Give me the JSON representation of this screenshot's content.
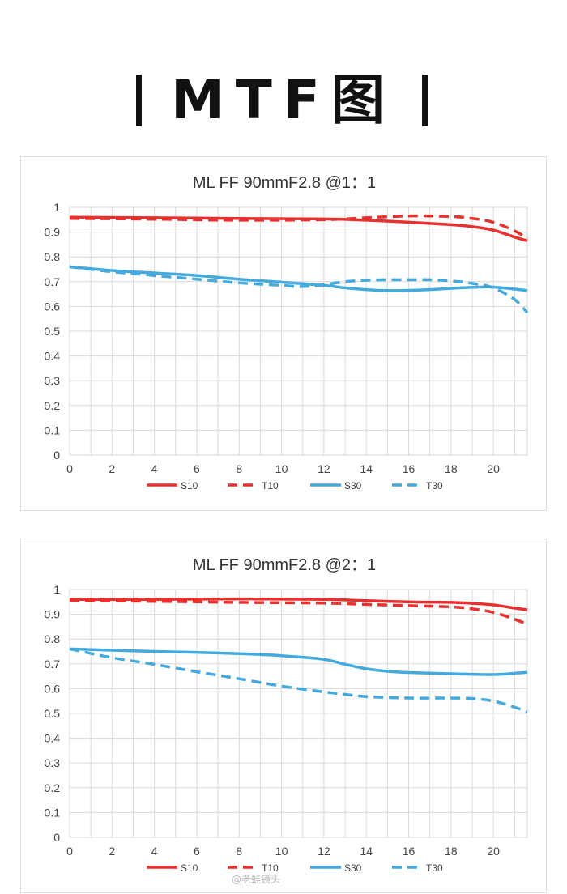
{
  "header": {
    "title": "MTF图"
  },
  "watermark": "@老蛙镜头",
  "legend_names": [
    "S10",
    "T10",
    "S30",
    "T30"
  ],
  "colors": {
    "red": "#e8302e",
    "blue": "#44aadd",
    "grid": "#d9d9d9",
    "axis_text": "#444444",
    "title_text": "#333333"
  },
  "chart_data": [
    {
      "type": "line",
      "title": "ML FF 90mmF2.8 @1：1",
      "xlim": [
        0,
        21.6
      ],
      "ylim": [
        0,
        1
      ],
      "x_ticks": [
        "0",
        "2",
        "4",
        "6",
        "8",
        "10",
        "12",
        "14",
        "16",
        "18",
        "20"
      ],
      "y_ticks": [
        "0",
        "0.1",
        "0.2",
        "0.3",
        "0.4",
        "0.5",
        "0.6",
        "0.7",
        "0.8",
        "0.9",
        "1"
      ],
      "grid": true,
      "legend_position": "bottom",
      "series": [
        {
          "name": "S10",
          "color": "red",
          "dashed": false,
          "points": [
            [
              0,
              0.96
            ],
            [
              4,
              0.958
            ],
            [
              8,
              0.955
            ],
            [
              12,
              0.953
            ],
            [
              14,
              0.948
            ],
            [
              16,
              0.94
            ],
            [
              18,
              0.93
            ],
            [
              19,
              0.922
            ],
            [
              20,
              0.908
            ],
            [
              21,
              0.88
            ],
            [
              21.6,
              0.865
            ]
          ]
        },
        {
          "name": "T10",
          "color": "red",
          "dashed": true,
          "points": [
            [
              0,
              0.955
            ],
            [
              4,
              0.952
            ],
            [
              8,
              0.948
            ],
            [
              12,
              0.95
            ],
            [
              14,
              0.958
            ],
            [
              16,
              0.965
            ],
            [
              18,
              0.963
            ],
            [
              19,
              0.955
            ],
            [
              20,
              0.94
            ],
            [
              21,
              0.905
            ],
            [
              21.6,
              0.875
            ]
          ]
        },
        {
          "name": "S30",
          "color": "blue",
          "dashed": false,
          "points": [
            [
              0,
              0.76
            ],
            [
              2,
              0.745
            ],
            [
              4,
              0.735
            ],
            [
              6,
              0.725
            ],
            [
              8,
              0.71
            ],
            [
              10,
              0.698
            ],
            [
              12,
              0.685
            ],
            [
              13,
              0.675
            ],
            [
              14,
              0.668
            ],
            [
              15,
              0.664
            ],
            [
              16,
              0.665
            ],
            [
              17,
              0.668
            ],
            [
              18,
              0.673
            ],
            [
              19,
              0.677
            ],
            [
              20,
              0.678
            ],
            [
              21,
              0.67
            ],
            [
              21.6,
              0.664
            ]
          ]
        },
        {
          "name": "T30",
          "color": "blue",
          "dashed": true,
          "points": [
            [
              0,
              0.76
            ],
            [
              2,
              0.74
            ],
            [
              4,
              0.725
            ],
            [
              6,
              0.71
            ],
            [
              8,
              0.695
            ],
            [
              10,
              0.685
            ],
            [
              11,
              0.68
            ],
            [
              12,
              0.688
            ],
            [
              13,
              0.7
            ],
            [
              14,
              0.706
            ],
            [
              15,
              0.708
            ],
            [
              16,
              0.708
            ],
            [
              17,
              0.708
            ],
            [
              18,
              0.703
            ],
            [
              19,
              0.693
            ],
            [
              20,
              0.675
            ],
            [
              21,
              0.628
            ],
            [
              21.6,
              0.575
            ]
          ]
        }
      ]
    },
    {
      "type": "line",
      "title": "ML FF 90mmF2.8 @2：1",
      "xlim": [
        0,
        21.6
      ],
      "ylim": [
        0,
        1
      ],
      "x_ticks": [
        "0",
        "2",
        "4",
        "6",
        "8",
        "10",
        "12",
        "14",
        "16",
        "18",
        "20"
      ],
      "y_ticks": [
        "0",
        "0.1",
        "0.2",
        "0.3",
        "0.4",
        "0.5",
        "0.6",
        "0.7",
        "0.8",
        "0.9",
        "1"
      ],
      "grid": true,
      "legend_position": "bottom",
      "series": [
        {
          "name": "S10",
          "color": "red",
          "dashed": false,
          "points": [
            [
              0,
              0.96
            ],
            [
              4,
              0.96
            ],
            [
              8,
              0.962
            ],
            [
              12,
              0.96
            ],
            [
              14,
              0.955
            ],
            [
              16,
              0.95
            ],
            [
              18,
              0.948
            ],
            [
              19,
              0.944
            ],
            [
              20,
              0.938
            ],
            [
              21,
              0.925
            ],
            [
              21.6,
              0.918
            ]
          ]
        },
        {
          "name": "T10",
          "color": "red",
          "dashed": true,
          "points": [
            [
              0,
              0.955
            ],
            [
              4,
              0.952
            ],
            [
              8,
              0.948
            ],
            [
              12,
              0.945
            ],
            [
              14,
              0.94
            ],
            [
              16,
              0.935
            ],
            [
              18,
              0.93
            ],
            [
              19,
              0.922
            ],
            [
              20,
              0.908
            ],
            [
              21,
              0.88
            ],
            [
              21.6,
              0.86
            ]
          ]
        },
        {
          "name": "S30",
          "color": "blue",
          "dashed": false,
          "points": [
            [
              0,
              0.76
            ],
            [
              2,
              0.755
            ],
            [
              4,
              0.75
            ],
            [
              6,
              0.746
            ],
            [
              8,
              0.741
            ],
            [
              10,
              0.733
            ],
            [
              12,
              0.718
            ],
            [
              13,
              0.698
            ],
            [
              14,
              0.68
            ],
            [
              15,
              0.67
            ],
            [
              16,
              0.665
            ],
            [
              18,
              0.66
            ],
            [
              20,
              0.657
            ],
            [
              21,
              0.662
            ],
            [
              21.6,
              0.666
            ]
          ]
        },
        {
          "name": "T30",
          "color": "blue",
          "dashed": true,
          "points": [
            [
              0,
              0.76
            ],
            [
              2,
              0.725
            ],
            [
              4,
              0.698
            ],
            [
              6,
              0.668
            ],
            [
              8,
              0.64
            ],
            [
              10,
              0.61
            ],
            [
              12,
              0.587
            ],
            [
              14,
              0.568
            ],
            [
              16,
              0.562
            ],
            [
              18,
              0.562
            ],
            [
              19,
              0.56
            ],
            [
              20,
              0.55
            ],
            [
              21,
              0.525
            ],
            [
              21.6,
              0.505
            ]
          ]
        }
      ]
    }
  ]
}
